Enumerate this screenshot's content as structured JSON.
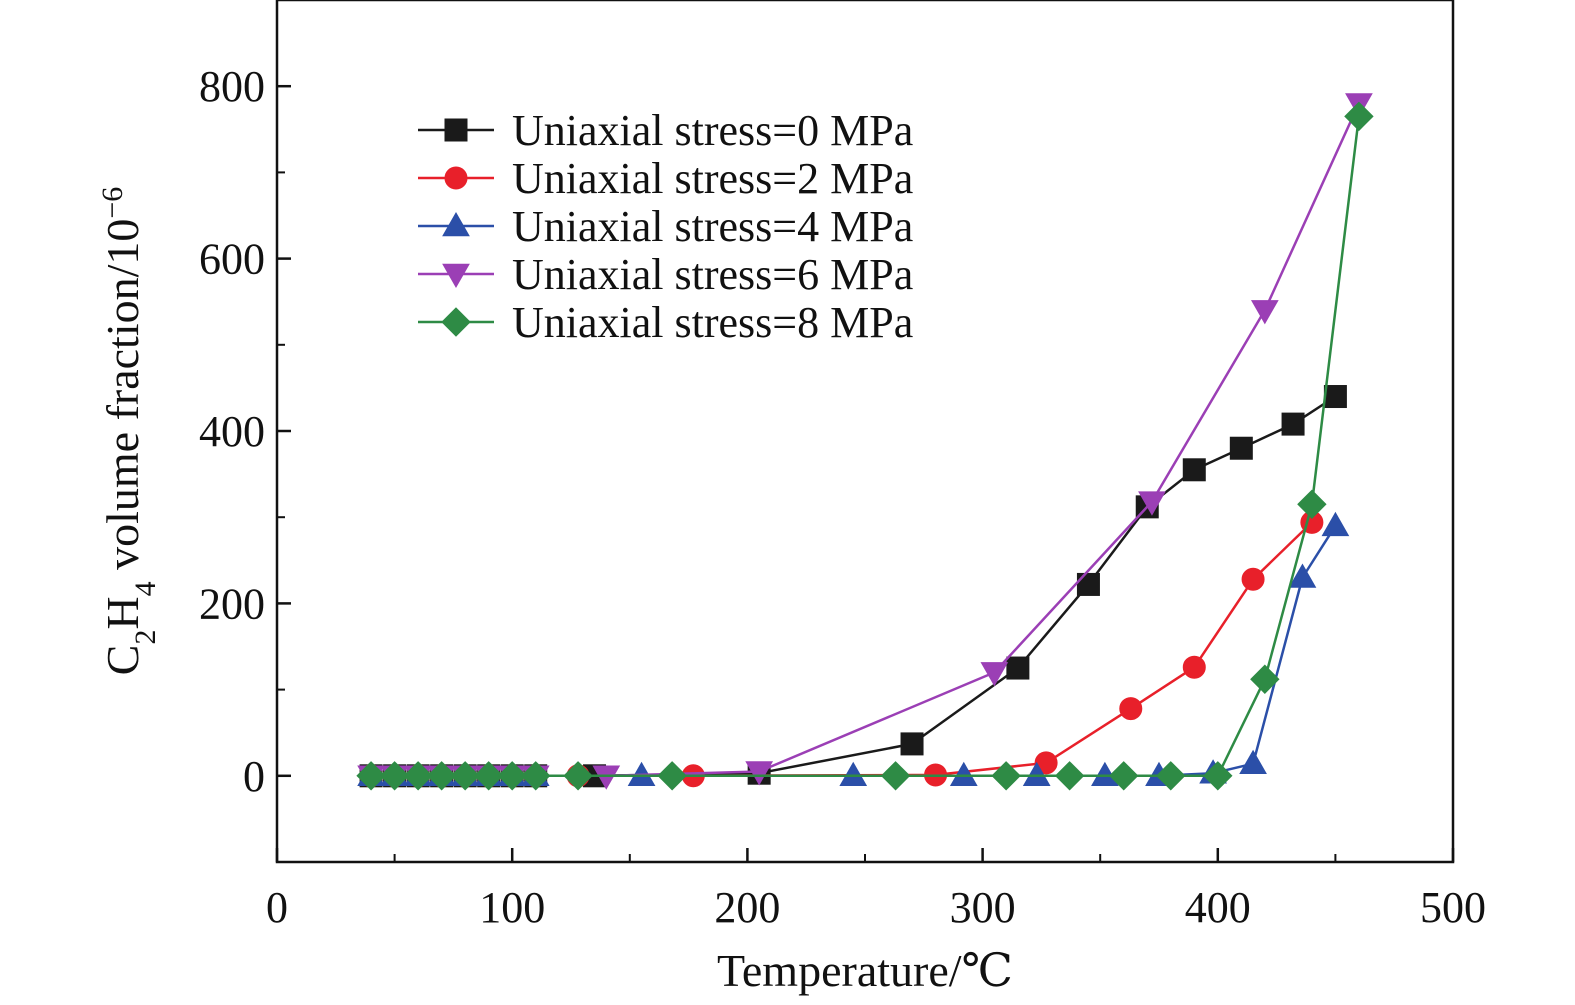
{
  "chart_data": {
    "type": "line",
    "xlabel": "Temperature/℃",
    "ylabel_parts": {
      "main": "C",
      "sub1": "2",
      "mid": "H",
      "sub2": "4",
      "rest": " volume fraction/10",
      "sup": "−6"
    },
    "xlim": [
      0,
      500
    ],
    "ylim": [
      -100,
      900
    ],
    "xticks": [
      0,
      100,
      200,
      300,
      400,
      500
    ],
    "yticks": [
      0,
      200,
      400,
      600,
      800
    ],
    "grid": false,
    "legend_position": "top-left",
    "series": [
      {
        "name": "Uniaxial stress=0 MPa",
        "color": "#1a1a1a",
        "marker": "square",
        "x": [
          40,
          50,
          60,
          70,
          80,
          90,
          100,
          110,
          135,
          205,
          270,
          315,
          345,
          370,
          390,
          410,
          432,
          450
        ],
        "y": [
          0,
          0,
          0,
          0,
          0,
          0,
          0,
          0,
          0,
          3,
          37,
          125,
          222,
          312,
          355,
          380,
          408,
          440
        ]
      },
      {
        "name": "Uniaxial stress=2 MPa",
        "color": "#e8202a",
        "marker": "circle",
        "x": [
          40,
          50,
          60,
          70,
          80,
          90,
          100,
          110,
          128,
          177,
          280,
          327,
          363,
          390,
          415,
          440
        ],
        "y": [
          0,
          0,
          0,
          0,
          0,
          0,
          0,
          0,
          0,
          0,
          1,
          15,
          78,
          126,
          228,
          294
        ]
      },
      {
        "name": "Uniaxial stress=4 MPa",
        "color": "#2b4fa8",
        "marker": "triangle-up",
        "x": [
          40,
          50,
          60,
          70,
          80,
          90,
          100,
          110,
          155,
          245,
          292,
          323,
          352,
          375,
          398,
          415,
          436,
          450
        ],
        "y": [
          0,
          0,
          0,
          0,
          0,
          0,
          0,
          0,
          0,
          0,
          0,
          0,
          0,
          0,
          3,
          14,
          230,
          290
        ]
      },
      {
        "name": "Uniaxial stress=6 MPa",
        "color": "#9b3fb5",
        "marker": "triangle-down",
        "x": [
          40,
          50,
          60,
          70,
          80,
          90,
          100,
          110,
          140,
          205,
          305,
          372,
          420,
          460
        ],
        "y": [
          0,
          0,
          0,
          0,
          0,
          0,
          0,
          0,
          0,
          5,
          120,
          318,
          540,
          780
        ]
      },
      {
        "name": "Uniaxial stress=8 MPa",
        "color": "#2e8b45",
        "marker": "diamond",
        "x": [
          40,
          50,
          60,
          70,
          80,
          90,
          100,
          110,
          128,
          168,
          263,
          310,
          337,
          360,
          380,
          400,
          420,
          440,
          460
        ],
        "y": [
          0,
          0,
          0,
          0,
          0,
          0,
          0,
          0,
          0,
          0,
          0,
          0,
          0,
          0,
          0,
          0,
          112,
          315,
          765
        ]
      }
    ]
  }
}
